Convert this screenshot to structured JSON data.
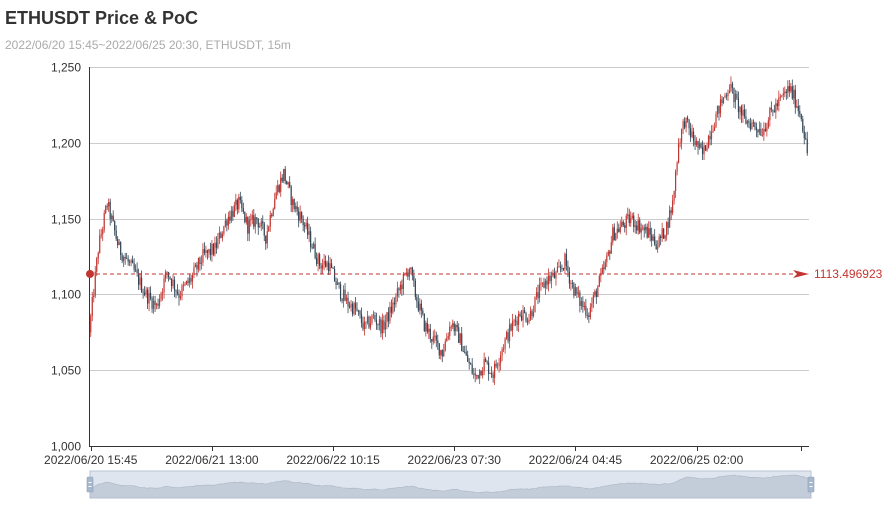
{
  "title": "ETHUSDT Price & PoC",
  "subtitle": "2022/06/20 15:45~2022/06/25 20:30, ETHUSDT, 15m",
  "colors": {
    "up": "#c23531",
    "down": "#314656",
    "poc": "#c23531",
    "grid": "#cccccc",
    "axis": "#333333",
    "zoom_fill": "#d2dbe6",
    "zoom_border": "#b8c4d4"
  },
  "chart_data": {
    "type": "candlestick",
    "symbol": "ETHUSDT",
    "interval": "15m",
    "ylim": [
      1000,
      1250
    ],
    "yticks": [
      "1,000",
      "1,050",
      "1,100",
      "1,150",
      "1,200",
      "1,250"
    ],
    "ytick_values": [
      1000,
      1050,
      1100,
      1150,
      1200,
      1250
    ],
    "xtick_labels": [
      "2022/06/20 15:45",
      "2022/06/21 13:00",
      "2022/06/22 10:15",
      "2022/06/23 07:30",
      "2022/06/24 04:45",
      "2022/06/25 02:00"
    ],
    "grid": true,
    "poc": {
      "value": 1113.496923,
      "label": "1113.496923"
    },
    "price_path": [
      [
        0,
        1075
      ],
      [
        6,
        1130
      ],
      [
        12,
        1160
      ],
      [
        20,
        1130
      ],
      [
        30,
        1115
      ],
      [
        38,
        1100
      ],
      [
        45,
        1092
      ],
      [
        52,
        1115
      ],
      [
        60,
        1100
      ],
      [
        68,
        1110
      ],
      [
        76,
        1125
      ],
      [
        84,
        1130
      ],
      [
        92,
        1150
      ],
      [
        100,
        1160
      ],
      [
        106,
        1145
      ],
      [
        112,
        1150
      ],
      [
        118,
        1138
      ],
      [
        124,
        1165
      ],
      [
        130,
        1180
      ],
      [
        136,
        1160
      ],
      [
        142,
        1150
      ],
      [
        148,
        1135
      ],
      [
        154,
        1120
      ],
      [
        160,
        1120
      ],
      [
        166,
        1105
      ],
      [
        172,
        1095
      ],
      [
        178,
        1090
      ],
      [
        184,
        1078
      ],
      [
        190,
        1085
      ],
      [
        196,
        1078
      ],
      [
        202,
        1090
      ],
      [
        208,
        1105
      ],
      [
        214,
        1118
      ],
      [
        218,
        1100
      ],
      [
        224,
        1080
      ],
      [
        230,
        1070
      ],
      [
        236,
        1062
      ],
      [
        242,
        1082
      ],
      [
        248,
        1070
      ],
      [
        252,
        1058
      ],
      [
        258,
        1045
      ],
      [
        264,
        1055
      ],
      [
        270,
        1048
      ],
      [
        276,
        1065
      ],
      [
        282,
        1078
      ],
      [
        288,
        1088
      ],
      [
        294,
        1085
      ],
      [
        300,
        1100
      ],
      [
        306,
        1110
      ],
      [
        312,
        1112
      ],
      [
        318,
        1122
      ],
      [
        322,
        1108
      ],
      [
        328,
        1095
      ],
      [
        334,
        1088
      ],
      [
        340,
        1105
      ],
      [
        346,
        1122
      ],
      [
        350,
        1140
      ],
      [
        356,
        1145
      ],
      [
        362,
        1150
      ],
      [
        368,
        1145
      ],
      [
        374,
        1140
      ],
      [
        380,
        1133
      ],
      [
        386,
        1145
      ],
      [
        390,
        1160
      ],
      [
        394,
        1200
      ],
      [
        398,
        1215
      ],
      [
        404,
        1202
      ],
      [
        410,
        1192
      ],
      [
        416,
        1210
      ],
      [
        422,
        1225
      ],
      [
        428,
        1238
      ],
      [
        432,
        1228
      ],
      [
        438,
        1215
      ],
      [
        444,
        1212
      ],
      [
        450,
        1208
      ],
      [
        456,
        1220
      ],
      [
        462,
        1228
      ],
      [
        468,
        1236
      ],
      [
        472,
        1228
      ],
      [
        476,
        1218
      ],
      [
        480,
        1193
      ]
    ]
  },
  "dataZoom": {
    "start": 0,
    "end": 100
  }
}
